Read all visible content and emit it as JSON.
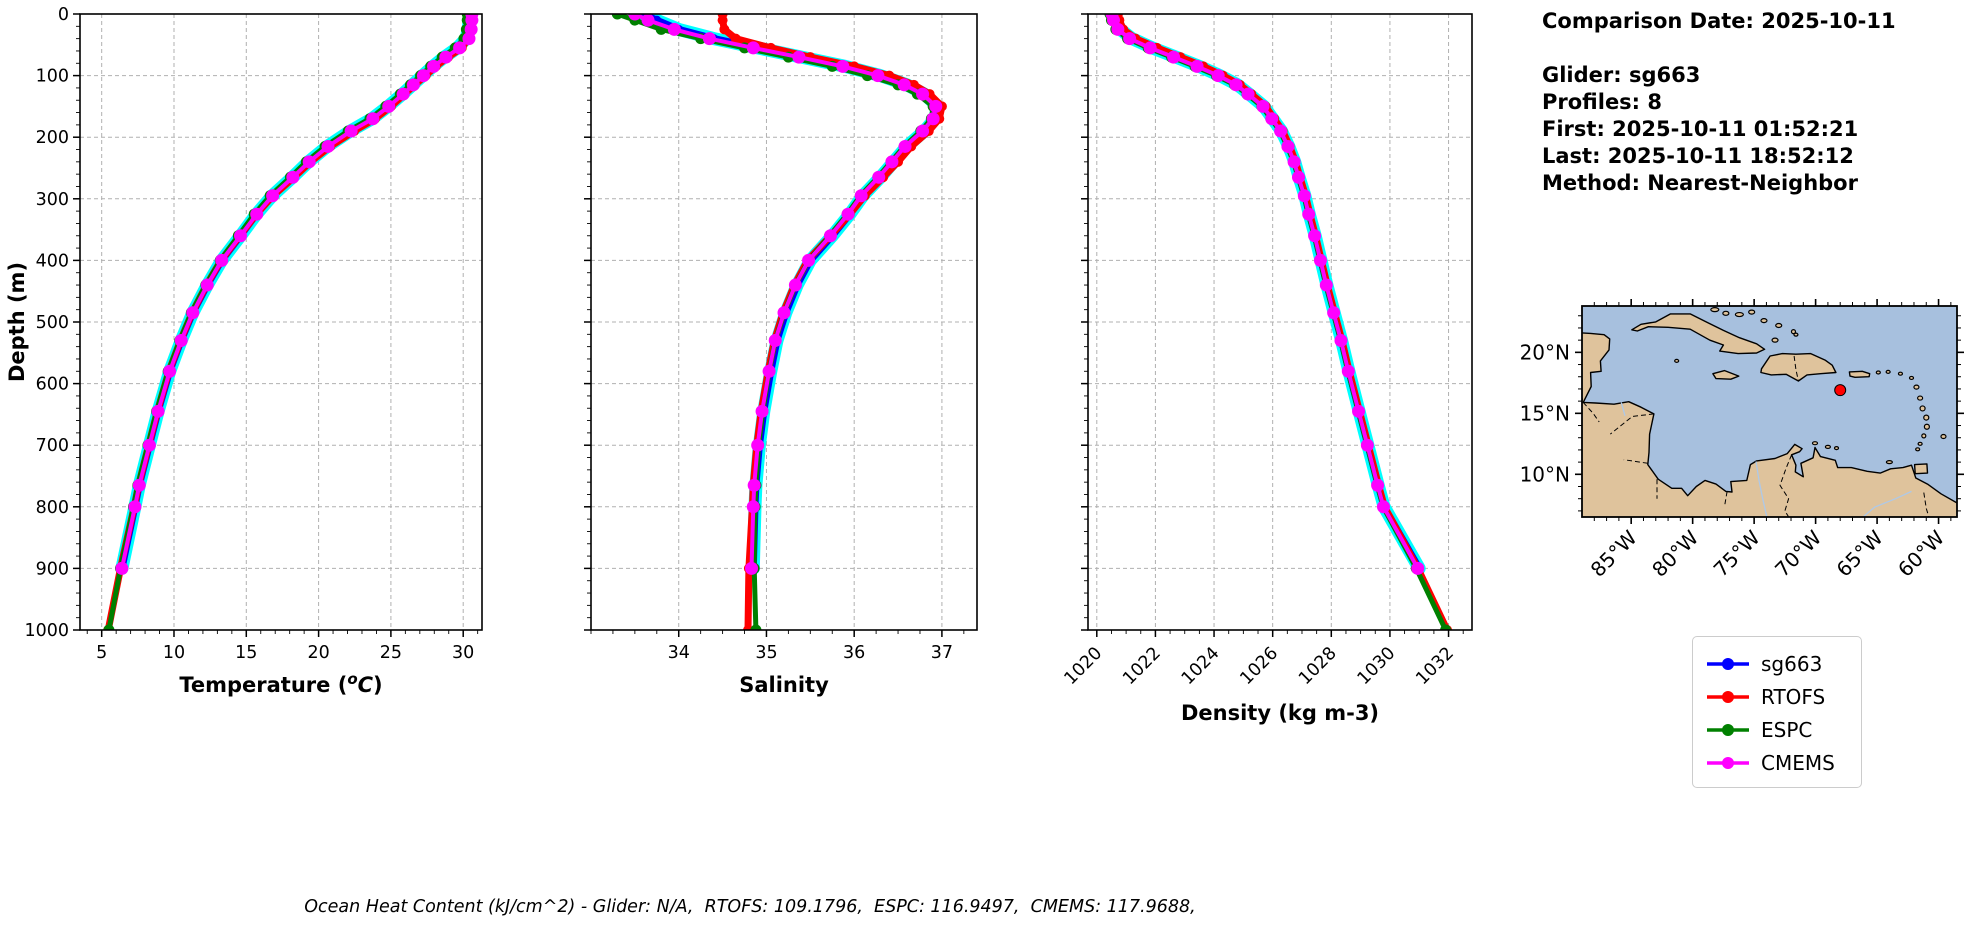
{
  "info": {
    "lines": [
      "Comparison Date: 2025-10-11",
      "",
      "Glider: sg663",
      "Profiles: 8",
      "First: 2025-10-11 01:52:21",
      "Last: 2025-10-11 18:52:12",
      "Method: Nearest-Neighbor"
    ]
  },
  "caption": "Ocean Heat Content (kJ/cm^2) - Glider: N/A,  RTOFS: 109.1796,  ESPC: 116.9497,  CMEMS: 117.9688,",
  "legend": {
    "entries": [
      {
        "label": "sg663",
        "color": "#0000ff"
      },
      {
        "label": "RTOFS",
        "color": "#ff0000"
      },
      {
        "label": "ESPC",
        "color": "#008000"
      },
      {
        "label": "CMEMS",
        "color": "#ff00ff"
      }
    ]
  },
  "depth_axis": {
    "label": "Depth (m)",
    "ticks": [
      0,
      100,
      200,
      300,
      400,
      500,
      600,
      700,
      800,
      900,
      1000
    ],
    "lim": [
      0,
      1000
    ],
    "inverted": true
  },
  "map": {
    "lat_tick_labels": [
      "20°N",
      "15°N",
      "10°N"
    ],
    "lat_ticks": [
      20,
      15,
      10
    ],
    "lon_tick_labels": [
      "85°W",
      "80°W",
      "75°W",
      "70°W",
      "65°W",
      "60°W"
    ],
    "lon_ticks": [
      -85,
      -80,
      -75,
      -70,
      -65,
      -60
    ],
    "lon_range": [
      -89.0,
      -58.5
    ],
    "lat_range": [
      6.5,
      23.8
    ],
    "ocean_color": "#a7c0de",
    "land_color": "#dfc39c",
    "coast_color": "#000000",
    "river_color": "#aec9e8",
    "marker": {
      "name": "glider-position",
      "lon": -68.0,
      "lat": 16.9,
      "color": "#ff0000"
    }
  },
  "chart_data": [
    {
      "type": "line",
      "id": "temperature",
      "xlabel_parts": [
        {
          "t": "Temperature (",
          "s": "b"
        },
        {
          "t": "o",
          "s": "sup"
        },
        {
          "t": "C",
          "s": "i"
        },
        {
          "t": ")",
          "s": "b"
        }
      ],
      "xlim": [
        3.5,
        31.3
      ],
      "x_ticks": [
        5,
        10,
        15,
        20,
        25,
        30
      ],
      "x_minor_step": 1,
      "rotate_xticklabels": false,
      "grid": true,
      "depths": [
        0,
        10,
        25,
        40,
        55,
        70,
        85,
        100,
        115,
        130,
        150,
        170,
        190,
        215,
        240,
        265,
        295,
        325,
        360,
        400,
        440,
        485,
        530,
        580,
        645,
        700,
        765,
        800,
        900,
        1000
      ],
      "envelope": {
        "series": "sg663",
        "color": "#00ffff",
        "width": 13
      },
      "series": [
        {
          "name": "sg663",
          "color": "#0000ff",
          "lw": 7,
          "ms": 4.5,
          "values": [
            30.4,
            30.4,
            30.35,
            30.2,
            29.6,
            28.7,
            27.9,
            27.2,
            26.5,
            25.8,
            24.8,
            23.7,
            22.2,
            20.6,
            19.3,
            18.2,
            16.8,
            15.7,
            14.6,
            13.3,
            12.3,
            11.3,
            10.5,
            9.7,
            8.9,
            8.3,
            7.6,
            7.3,
            6.4,
            null
          ]
        },
        {
          "name": "RTOFS",
          "color": "#ff0000",
          "lw": 7,
          "ms": 5,
          "values": [
            30.5,
            30.5,
            30.45,
            30.35,
            29.9,
            28.95,
            28.1,
            27.4,
            26.65,
            25.95,
            25.0,
            23.9,
            22.45,
            20.8,
            19.45,
            18.3,
            16.85,
            15.7,
            14.55,
            13.25,
            12.25,
            11.25,
            10.45,
            9.65,
            8.85,
            8.25,
            7.55,
            7.25,
            6.3,
            5.45
          ]
        },
        {
          "name": "ESPC",
          "color": "#008000",
          "lw": 5,
          "ms": 5.5,
          "values": [
            30.28,
            30.28,
            30.22,
            30.05,
            29.45,
            28.55,
            27.75,
            27.05,
            26.35,
            25.65,
            24.65,
            23.55,
            22.05,
            20.45,
            19.15,
            18.05,
            16.65,
            15.55,
            14.45,
            13.2,
            12.2,
            11.2,
            10.4,
            9.6,
            8.8,
            8.2,
            7.5,
            7.2,
            6.3,
            5.5
          ]
        },
        {
          "name": "CMEMS",
          "color": "#ff00ff",
          "lw": 4,
          "ms": 6.5,
          "values": [
            30.6,
            30.6,
            30.55,
            30.4,
            29.75,
            28.8,
            27.95,
            27.25,
            26.55,
            25.85,
            24.85,
            23.75,
            22.25,
            20.65,
            19.35,
            18.22,
            16.82,
            15.72,
            14.6,
            13.3,
            12.3,
            11.3,
            10.5,
            9.7,
            8.9,
            8.3,
            7.6,
            7.3,
            6.4,
            null
          ]
        }
      ]
    },
    {
      "type": "line",
      "id": "salinity",
      "xlabel_parts": [
        {
          "t": "Salinity",
          "s": "b"
        }
      ],
      "xlim": [
        33.0,
        37.4
      ],
      "x_ticks": [
        34,
        35,
        36,
        37
      ],
      "x_minor_step": 0.25,
      "rotate_xticklabels": false,
      "grid": true,
      "depths": [
        0,
        10,
        25,
        40,
        55,
        70,
        85,
        100,
        115,
        130,
        150,
        170,
        190,
        215,
        240,
        265,
        295,
        325,
        360,
        400,
        440,
        485,
        530,
        580,
        645,
        700,
        765,
        800,
        900,
        1000
      ],
      "envelope": {
        "series": "sg663",
        "color": "#00ffff",
        "width": 13
      },
      "series": [
        {
          "name": "sg663",
          "color": "#0000ff",
          "lw": 7,
          "ms": 4.5,
          "values": [
            33.6,
            33.75,
            34.0,
            34.4,
            34.9,
            35.4,
            35.9,
            36.3,
            36.6,
            36.8,
            36.95,
            36.92,
            36.8,
            36.6,
            36.45,
            36.3,
            36.1,
            35.95,
            35.75,
            35.5,
            35.35,
            35.22,
            35.12,
            35.05,
            34.97,
            34.92,
            34.88,
            34.87,
            34.85,
            null
          ]
        },
        {
          "name": "RTOFS",
          "color": "#ff0000",
          "lw": 7,
          "ms": 5,
          "values": [
            34.5,
            34.5,
            34.52,
            34.65,
            35.05,
            35.5,
            36.0,
            36.4,
            36.68,
            36.86,
            37.0,
            36.97,
            36.85,
            36.65,
            36.5,
            36.33,
            36.12,
            35.95,
            35.73,
            35.47,
            35.32,
            35.19,
            35.09,
            35.02,
            34.94,
            34.89,
            34.85,
            34.84,
            34.8,
            34.79
          ]
        },
        {
          "name": "ESPC",
          "color": "#008000",
          "lw": 5,
          "ms": 5.5,
          "values": [
            33.3,
            33.5,
            33.8,
            34.25,
            34.75,
            35.25,
            35.75,
            36.15,
            36.5,
            36.72,
            36.9,
            36.88,
            36.76,
            36.57,
            36.42,
            36.27,
            36.07,
            35.92,
            35.72,
            35.48,
            35.33,
            35.2,
            35.1,
            35.03,
            34.96,
            34.91,
            34.88,
            34.87,
            34.86,
            34.88
          ]
        },
        {
          "name": "CMEMS",
          "color": "#ff00ff",
          "lw": 4,
          "ms": 6.5,
          "values": [
            33.5,
            33.65,
            33.95,
            34.35,
            34.85,
            35.37,
            35.87,
            36.27,
            36.57,
            36.78,
            36.93,
            36.9,
            36.78,
            36.58,
            36.43,
            36.28,
            36.08,
            35.93,
            35.73,
            35.48,
            35.33,
            35.2,
            35.1,
            35.03,
            34.95,
            34.9,
            34.86,
            34.85,
            34.83,
            null
          ]
        }
      ]
    },
    {
      "type": "line",
      "id": "density",
      "xlabel_parts": [
        {
          "t": "Density (kg m-3)",
          "s": "b"
        }
      ],
      "xlim": [
        1019.7,
        1032.8
      ],
      "x_ticks": [
        1020,
        1022,
        1024,
        1026,
        1028,
        1030,
        1032
      ],
      "x_minor_step": 0.5,
      "rotate_xticklabels": true,
      "grid": true,
      "depths": [
        0,
        10,
        25,
        40,
        55,
        70,
        85,
        100,
        115,
        130,
        150,
        170,
        190,
        215,
        240,
        265,
        295,
        325,
        360,
        400,
        440,
        485,
        530,
        580,
        645,
        700,
        765,
        800,
        900,
        1000
      ],
      "envelope": {
        "series": "sg663",
        "color": "#00ffff",
        "width": 13
      },
      "series": [
        {
          "name": "sg663",
          "color": "#0000ff",
          "lw": 7,
          "ms": 4.5,
          "values": [
            1020.6,
            1020.65,
            1020.8,
            1021.2,
            1021.9,
            1022.7,
            1023.5,
            1024.2,
            1024.8,
            1025.2,
            1025.7,
            1026.0,
            1026.3,
            1026.55,
            1026.75,
            1026.9,
            1027.1,
            1027.25,
            1027.45,
            1027.65,
            1027.85,
            1028.1,
            1028.35,
            1028.6,
            1028.95,
            1029.25,
            1029.6,
            1029.8,
            1031.0,
            null
          ]
        },
        {
          "name": "RTOFS",
          "color": "#ff0000",
          "lw": 7,
          "ms": 5,
          "values": [
            1020.72,
            1020.77,
            1020.9,
            1021.32,
            1022.05,
            1022.85,
            1023.63,
            1024.3,
            1024.88,
            1025.27,
            1025.76,
            1026.05,
            1026.34,
            1026.58,
            1026.78,
            1026.93,
            1027.12,
            1027.27,
            1027.46,
            1027.66,
            1027.86,
            1028.11,
            1028.36,
            1028.61,
            1028.96,
            1029.26,
            1029.61,
            1029.81,
            1030.95,
            1031.95
          ]
        },
        {
          "name": "ESPC",
          "color": "#008000",
          "lw": 5,
          "ms": 5.5,
          "values": [
            1020.45,
            1020.5,
            1020.65,
            1021.05,
            1021.75,
            1022.55,
            1023.35,
            1024.08,
            1024.7,
            1025.12,
            1025.63,
            1025.94,
            1026.25,
            1026.5,
            1026.71,
            1026.87,
            1027.07,
            1027.22,
            1027.42,
            1027.62,
            1027.82,
            1028.07,
            1028.32,
            1028.57,
            1028.92,
            1029.22,
            1029.57,
            1029.77,
            1030.9,
            1031.9
          ]
        },
        {
          "name": "CMEMS",
          "color": "#ff00ff",
          "lw": 4,
          "ms": 6.5,
          "values": [
            1020.52,
            1020.57,
            1020.72,
            1021.12,
            1021.82,
            1022.62,
            1023.42,
            1024.14,
            1024.75,
            1025.16,
            1025.67,
            1025.97,
            1026.27,
            1026.52,
            1026.73,
            1026.88,
            1027.08,
            1027.23,
            1027.43,
            1027.63,
            1027.83,
            1028.08,
            1028.33,
            1028.58,
            1028.93,
            1029.23,
            1029.58,
            1029.78,
            1030.95,
            null
          ]
        }
      ]
    }
  ]
}
